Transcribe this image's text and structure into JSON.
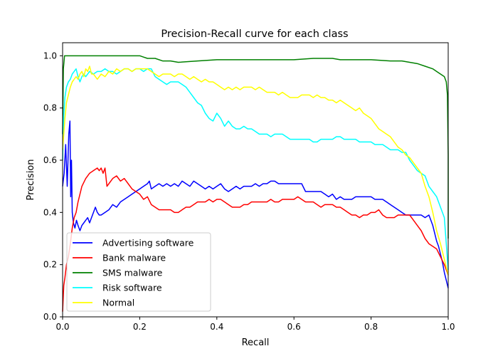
{
  "chart_data": {
    "type": "line",
    "title": "Precision-Recall curve for each class",
    "xlabel": "Recall",
    "ylabel": "Precision",
    "xlim": [
      0.0,
      1.0
    ],
    "ylim": [
      0.0,
      1.05
    ],
    "xticks": [
      "0.0",
      "0.2",
      "0.4",
      "0.6",
      "0.8",
      "1.0"
    ],
    "yticks": [
      "0.0",
      "0.2",
      "0.4",
      "0.6",
      "0.8",
      "1.0"
    ],
    "grid": false,
    "legend_position": "lower-left",
    "series": [
      {
        "name": "Advertising software",
        "color": "#0000ff",
        "x": [
          0.0,
          0.004,
          0.008,
          0.012,
          0.016,
          0.019,
          0.021,
          0.023,
          0.025,
          0.028,
          0.032,
          0.036,
          0.04,
          0.045,
          0.05,
          0.055,
          0.06,
          0.065,
          0.07,
          0.075,
          0.08,
          0.085,
          0.09,
          0.095,
          0.1,
          0.11,
          0.12,
          0.13,
          0.14,
          0.15,
          0.16,
          0.17,
          0.18,
          0.19,
          0.2,
          0.21,
          0.22,
          0.225,
          0.23,
          0.24,
          0.25,
          0.26,
          0.27,
          0.28,
          0.29,
          0.3,
          0.31,
          0.32,
          0.33,
          0.34,
          0.35,
          0.36,
          0.37,
          0.38,
          0.39,
          0.4,
          0.41,
          0.42,
          0.43,
          0.44,
          0.45,
          0.46,
          0.47,
          0.48,
          0.49,
          0.5,
          0.51,
          0.52,
          0.53,
          0.54,
          0.55,
          0.56,
          0.57,
          0.58,
          0.59,
          0.6,
          0.61,
          0.62,
          0.63,
          0.64,
          0.65,
          0.66,
          0.67,
          0.68,
          0.69,
          0.7,
          0.71,
          0.72,
          0.73,
          0.74,
          0.75,
          0.76,
          0.77,
          0.78,
          0.79,
          0.8,
          0.81,
          0.82,
          0.83,
          0.84,
          0.85,
          0.86,
          0.87,
          0.88,
          0.89,
          0.9,
          0.91,
          0.92,
          0.93,
          0.94,
          0.95,
          0.96,
          0.965,
          0.97,
          0.975,
          0.98,
          0.985,
          0.99,
          0.995,
          1.0
        ],
        "y": [
          0.5,
          0.55,
          0.66,
          0.5,
          0.7,
          0.75,
          0.46,
          0.6,
          0.4,
          0.36,
          0.34,
          0.37,
          0.35,
          0.33,
          0.35,
          0.36,
          0.37,
          0.38,
          0.36,
          0.38,
          0.4,
          0.42,
          0.4,
          0.39,
          0.39,
          0.4,
          0.41,
          0.43,
          0.42,
          0.44,
          0.45,
          0.46,
          0.47,
          0.48,
          0.49,
          0.5,
          0.51,
          0.52,
          0.49,
          0.5,
          0.51,
          0.5,
          0.51,
          0.5,
          0.51,
          0.5,
          0.52,
          0.51,
          0.5,
          0.52,
          0.51,
          0.5,
          0.49,
          0.5,
          0.49,
          0.5,
          0.51,
          0.49,
          0.48,
          0.49,
          0.5,
          0.49,
          0.5,
          0.5,
          0.5,
          0.51,
          0.5,
          0.51,
          0.51,
          0.52,
          0.52,
          0.51,
          0.51,
          0.51,
          0.51,
          0.51,
          0.51,
          0.51,
          0.48,
          0.48,
          0.48,
          0.48,
          0.48,
          0.47,
          0.46,
          0.47,
          0.45,
          0.46,
          0.45,
          0.45,
          0.45,
          0.46,
          0.46,
          0.46,
          0.46,
          0.46,
          0.45,
          0.45,
          0.45,
          0.44,
          0.43,
          0.42,
          0.41,
          0.4,
          0.39,
          0.39,
          0.39,
          0.39,
          0.39,
          0.38,
          0.39,
          0.35,
          0.32,
          0.29,
          0.27,
          0.24,
          0.21,
          0.17,
          0.14,
          0.11
        ]
      },
      {
        "name": "Bank malware",
        "color": "#ff0000",
        "x": [
          0.0,
          0.003,
          0.006,
          0.01,
          0.015,
          0.02,
          0.025,
          0.03,
          0.035,
          0.04,
          0.045,
          0.05,
          0.06,
          0.07,
          0.08,
          0.09,
          0.095,
          0.1,
          0.105,
          0.11,
          0.115,
          0.12,
          0.13,
          0.14,
          0.15,
          0.16,
          0.17,
          0.18,
          0.19,
          0.2,
          0.21,
          0.22,
          0.23,
          0.24,
          0.25,
          0.26,
          0.27,
          0.28,
          0.29,
          0.3,
          0.31,
          0.32,
          0.33,
          0.34,
          0.35,
          0.36,
          0.37,
          0.38,
          0.39,
          0.4,
          0.41,
          0.42,
          0.43,
          0.44,
          0.45,
          0.46,
          0.47,
          0.48,
          0.49,
          0.5,
          0.51,
          0.52,
          0.53,
          0.54,
          0.55,
          0.56,
          0.57,
          0.58,
          0.59,
          0.6,
          0.61,
          0.62,
          0.63,
          0.64,
          0.65,
          0.66,
          0.67,
          0.68,
          0.69,
          0.7,
          0.71,
          0.72,
          0.73,
          0.74,
          0.75,
          0.76,
          0.77,
          0.78,
          0.79,
          0.8,
          0.81,
          0.82,
          0.83,
          0.84,
          0.85,
          0.86,
          0.87,
          0.88,
          0.89,
          0.9,
          0.91,
          0.92,
          0.93,
          0.94,
          0.95,
          0.96,
          0.97,
          0.98,
          0.99,
          1.0
        ],
        "y": [
          0.02,
          0.12,
          0.15,
          0.2,
          0.23,
          0.28,
          0.34,
          0.38,
          0.4,
          0.44,
          0.47,
          0.5,
          0.53,
          0.55,
          0.56,
          0.57,
          0.56,
          0.57,
          0.55,
          0.57,
          0.5,
          0.51,
          0.53,
          0.54,
          0.52,
          0.53,
          0.51,
          0.49,
          0.48,
          0.47,
          0.45,
          0.46,
          0.43,
          0.42,
          0.41,
          0.41,
          0.41,
          0.41,
          0.4,
          0.4,
          0.41,
          0.42,
          0.42,
          0.43,
          0.44,
          0.44,
          0.44,
          0.45,
          0.44,
          0.45,
          0.45,
          0.44,
          0.43,
          0.42,
          0.42,
          0.42,
          0.43,
          0.43,
          0.44,
          0.44,
          0.44,
          0.44,
          0.44,
          0.45,
          0.44,
          0.44,
          0.45,
          0.45,
          0.45,
          0.45,
          0.46,
          0.45,
          0.44,
          0.44,
          0.44,
          0.43,
          0.42,
          0.43,
          0.43,
          0.43,
          0.42,
          0.42,
          0.41,
          0.4,
          0.39,
          0.39,
          0.38,
          0.39,
          0.39,
          0.4,
          0.4,
          0.41,
          0.39,
          0.38,
          0.38,
          0.38,
          0.39,
          0.39,
          0.39,
          0.39,
          0.37,
          0.35,
          0.33,
          0.3,
          0.28,
          0.27,
          0.26,
          0.23,
          0.2,
          0.16
        ]
      },
      {
        "name": "SMS malware",
        "color": "#008000",
        "x": [
          0.0,
          0.002,
          0.005,
          0.02,
          0.05,
          0.1,
          0.15,
          0.2,
          0.21,
          0.22,
          0.24,
          0.26,
          0.28,
          0.3,
          0.35,
          0.4,
          0.45,
          0.5,
          0.55,
          0.6,
          0.65,
          0.7,
          0.72,
          0.75,
          0.8,
          0.85,
          0.88,
          0.9,
          0.92,
          0.94,
          0.96,
          0.97,
          0.98,
          0.99,
          0.995,
          0.998,
          1.0,
          1.0
        ],
        "y": [
          0.7,
          0.95,
          1.0,
          1.0,
          1.0,
          1.0,
          1.0,
          1.0,
          0.995,
          0.99,
          0.99,
          0.98,
          0.98,
          0.975,
          0.98,
          0.985,
          0.985,
          0.985,
          0.985,
          0.985,
          0.99,
          0.99,
          0.985,
          0.985,
          0.985,
          0.98,
          0.98,
          0.975,
          0.97,
          0.96,
          0.95,
          0.94,
          0.93,
          0.92,
          0.9,
          0.85,
          0.62,
          0.3
        ]
      },
      {
        "name": "Risk software",
        "color": "#00ffff",
        "x": [
          0.0,
          0.003,
          0.006,
          0.01,
          0.015,
          0.02,
          0.025,
          0.03,
          0.035,
          0.04,
          0.045,
          0.05,
          0.055,
          0.06,
          0.065,
          0.07,
          0.08,
          0.09,
          0.1,
          0.11,
          0.12,
          0.13,
          0.14,
          0.15,
          0.16,
          0.17,
          0.18,
          0.19,
          0.2,
          0.21,
          0.22,
          0.23,
          0.24,
          0.25,
          0.26,
          0.27,
          0.28,
          0.29,
          0.3,
          0.31,
          0.32,
          0.33,
          0.34,
          0.35,
          0.36,
          0.37,
          0.38,
          0.39,
          0.4,
          0.41,
          0.42,
          0.43,
          0.44,
          0.45,
          0.46,
          0.47,
          0.48,
          0.49,
          0.5,
          0.51,
          0.52,
          0.53,
          0.54,
          0.55,
          0.56,
          0.57,
          0.58,
          0.59,
          0.6,
          0.61,
          0.62,
          0.63,
          0.64,
          0.65,
          0.66,
          0.67,
          0.68,
          0.69,
          0.7,
          0.71,
          0.72,
          0.73,
          0.74,
          0.75,
          0.76,
          0.77,
          0.78,
          0.79,
          0.8,
          0.81,
          0.82,
          0.83,
          0.84,
          0.85,
          0.86,
          0.87,
          0.88,
          0.89,
          0.9,
          0.91,
          0.92,
          0.93,
          0.94,
          0.95,
          0.96,
          0.97,
          0.98,
          0.99,
          1.0
        ],
        "y": [
          0.6,
          0.77,
          0.84,
          0.88,
          0.9,
          0.91,
          0.93,
          0.94,
          0.95,
          0.92,
          0.9,
          0.92,
          0.93,
          0.92,
          0.93,
          0.94,
          0.93,
          0.94,
          0.94,
          0.95,
          0.94,
          0.94,
          0.93,
          0.94,
          0.95,
          0.95,
          0.94,
          0.95,
          0.95,
          0.94,
          0.95,
          0.95,
          0.92,
          0.91,
          0.9,
          0.89,
          0.9,
          0.9,
          0.9,
          0.89,
          0.88,
          0.86,
          0.84,
          0.82,
          0.81,
          0.78,
          0.76,
          0.75,
          0.78,
          0.76,
          0.73,
          0.75,
          0.73,
          0.72,
          0.72,
          0.73,
          0.72,
          0.72,
          0.71,
          0.7,
          0.7,
          0.7,
          0.69,
          0.7,
          0.7,
          0.7,
          0.69,
          0.68,
          0.68,
          0.68,
          0.68,
          0.68,
          0.68,
          0.67,
          0.67,
          0.68,
          0.68,
          0.68,
          0.68,
          0.69,
          0.69,
          0.68,
          0.68,
          0.68,
          0.68,
          0.67,
          0.67,
          0.67,
          0.67,
          0.66,
          0.66,
          0.66,
          0.65,
          0.64,
          0.64,
          0.64,
          0.63,
          0.63,
          0.6,
          0.58,
          0.56,
          0.55,
          0.54,
          0.5,
          0.48,
          0.46,
          0.42,
          0.38,
          0.18
        ]
      },
      {
        "name": "Normal",
        "color": "#ffff00",
        "x": [
          0.0,
          0.003,
          0.006,
          0.01,
          0.015,
          0.02,
          0.025,
          0.03,
          0.035,
          0.04,
          0.045,
          0.05,
          0.055,
          0.06,
          0.065,
          0.07,
          0.075,
          0.08,
          0.085,
          0.09,
          0.1,
          0.11,
          0.12,
          0.13,
          0.14,
          0.15,
          0.16,
          0.17,
          0.18,
          0.19,
          0.2,
          0.21,
          0.22,
          0.23,
          0.24,
          0.25,
          0.26,
          0.27,
          0.28,
          0.29,
          0.3,
          0.31,
          0.32,
          0.33,
          0.34,
          0.35,
          0.36,
          0.37,
          0.38,
          0.39,
          0.4,
          0.41,
          0.42,
          0.43,
          0.44,
          0.45,
          0.46,
          0.47,
          0.48,
          0.49,
          0.5,
          0.51,
          0.52,
          0.53,
          0.54,
          0.55,
          0.56,
          0.57,
          0.58,
          0.59,
          0.6,
          0.61,
          0.62,
          0.63,
          0.64,
          0.65,
          0.66,
          0.67,
          0.68,
          0.69,
          0.7,
          0.71,
          0.72,
          0.73,
          0.74,
          0.75,
          0.76,
          0.77,
          0.78,
          0.79,
          0.8,
          0.81,
          0.82,
          0.83,
          0.84,
          0.85,
          0.86,
          0.87,
          0.88,
          0.89,
          0.9,
          0.91,
          0.92,
          0.93,
          0.94,
          0.95,
          0.96,
          0.97,
          0.98,
          0.99,
          1.0
        ],
        "y": [
          0.64,
          0.7,
          0.76,
          0.82,
          0.85,
          0.88,
          0.9,
          0.91,
          0.92,
          0.91,
          0.93,
          0.94,
          0.92,
          0.95,
          0.94,
          0.96,
          0.93,
          0.93,
          0.92,
          0.91,
          0.93,
          0.92,
          0.94,
          0.93,
          0.95,
          0.94,
          0.95,
          0.95,
          0.94,
          0.95,
          0.95,
          0.95,
          0.95,
          0.94,
          0.93,
          0.92,
          0.93,
          0.93,
          0.93,
          0.92,
          0.93,
          0.93,
          0.92,
          0.91,
          0.92,
          0.91,
          0.9,
          0.91,
          0.9,
          0.9,
          0.89,
          0.88,
          0.87,
          0.88,
          0.87,
          0.88,
          0.87,
          0.88,
          0.88,
          0.88,
          0.87,
          0.88,
          0.87,
          0.86,
          0.86,
          0.86,
          0.85,
          0.86,
          0.85,
          0.84,
          0.84,
          0.84,
          0.85,
          0.85,
          0.85,
          0.84,
          0.85,
          0.84,
          0.84,
          0.83,
          0.83,
          0.82,
          0.83,
          0.82,
          0.81,
          0.8,
          0.79,
          0.8,
          0.78,
          0.77,
          0.76,
          0.74,
          0.72,
          0.71,
          0.7,
          0.69,
          0.67,
          0.65,
          0.64,
          0.62,
          0.61,
          0.59,
          0.57,
          0.55,
          0.5,
          0.46,
          0.4,
          0.33,
          0.28,
          0.22,
          0.16
        ]
      }
    ]
  }
}
